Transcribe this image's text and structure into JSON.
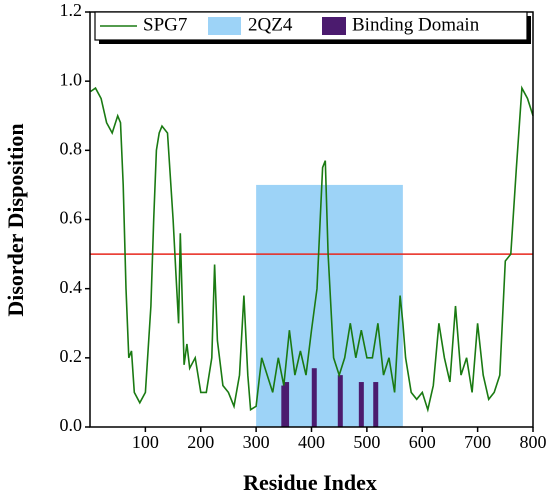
{
  "chart_data": {
    "type": "line",
    "xlabel": "Residue Index",
    "ylabel": "Disorder Disposition",
    "xlim": [
      0,
      800
    ],
    "ylim": [
      0,
      1.2
    ],
    "xticks": [
      100,
      200,
      300,
      400,
      500,
      600,
      700,
      800
    ],
    "yticks": [
      {
        "value": 0,
        "label": "0.0"
      },
      {
        "value": 0.2,
        "label": "0.2"
      },
      {
        "value": 0.4,
        "label": "0.4"
      },
      {
        "value": 0.6,
        "label": "0.6"
      },
      {
        "value": 0.8,
        "label": "0.8"
      },
      {
        "value": 1.0,
        "label": "1.0"
      },
      {
        "value": 1.2,
        "label": "1.2"
      }
    ],
    "threshold": {
      "value": 0.5,
      "color": "#e8261c"
    },
    "region": {
      "name": "2QZ4",
      "color": "#9dd3f7",
      "x": [
        300,
        565
      ],
      "top": 0.7
    },
    "series": [
      {
        "name": "SPG7",
        "color": "#1a7a12",
        "x": [
          1,
          10,
          20,
          30,
          40,
          50,
          55,
          60,
          65,
          70,
          75,
          80,
          90,
          100,
          110,
          115,
          120,
          125,
          130,
          140,
          150,
          155,
          160,
          163,
          166,
          170,
          175,
          180,
          190,
          200,
          210,
          220,
          225,
          230,
          240,
          250,
          260,
          270,
          278,
          285,
          290,
          300,
          310,
          320,
          330,
          340,
          350,
          360,
          370,
          380,
          390,
          400,
          410,
          420,
          425,
          430,
          440,
          450,
          460,
          470,
          480,
          490,
          500,
          510,
          520,
          530,
          540,
          550,
          560,
          565,
          570,
          580,
          590,
          600,
          610,
          620,
          630,
          640,
          650,
          660,
          670,
          680,
          690,
          700,
          710,
          720,
          730,
          740,
          750,
          760,
          770,
          780,
          790,
          800
        ],
        "values": [
          0.97,
          0.98,
          0.95,
          0.88,
          0.85,
          0.9,
          0.88,
          0.7,
          0.4,
          0.2,
          0.22,
          0.1,
          0.07,
          0.1,
          0.35,
          0.6,
          0.8,
          0.85,
          0.87,
          0.85,
          0.6,
          0.45,
          0.3,
          0.56,
          0.4,
          0.18,
          0.24,
          0.17,
          0.2,
          0.1,
          0.1,
          0.2,
          0.47,
          0.25,
          0.12,
          0.1,
          0.06,
          0.15,
          0.38,
          0.15,
          0.05,
          0.06,
          0.2,
          0.15,
          0.1,
          0.2,
          0.12,
          0.28,
          0.15,
          0.22,
          0.15,
          0.28,
          0.4,
          0.75,
          0.77,
          0.5,
          0.2,
          0.15,
          0.2,
          0.3,
          0.2,
          0.28,
          0.2,
          0.2,
          0.3,
          0.15,
          0.2,
          0.1,
          0.38,
          0.3,
          0.2,
          0.1,
          0.08,
          0.1,
          0.05,
          0.12,
          0.3,
          0.2,
          0.13,
          0.35,
          0.15,
          0.2,
          0.1,
          0.3,
          0.15,
          0.08,
          0.1,
          0.15,
          0.48,
          0.5,
          0.75,
          0.98,
          0.95,
          0.9
        ]
      },
      {
        "name": "Binding Domain",
        "color": "#4b1b6e",
        "type": "bar",
        "x": [
          350,
          355,
          405,
          452,
          490,
          516
        ],
        "values": [
          0.12,
          0.13,
          0.17,
          0.15,
          0.13,
          0.13
        ]
      }
    ]
  }
}
